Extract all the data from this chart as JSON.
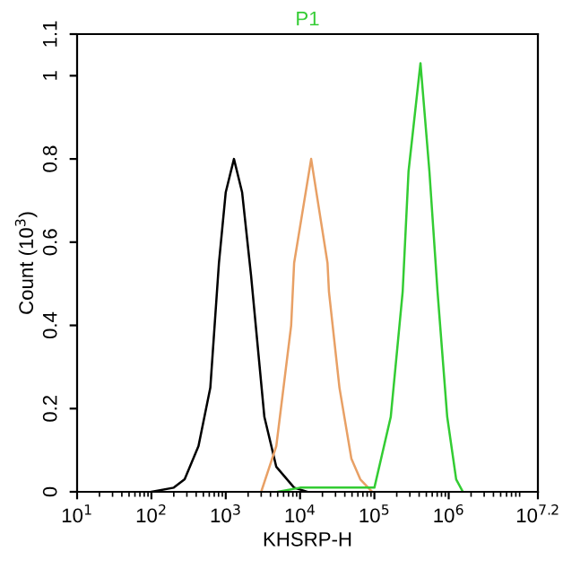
{
  "chart_data": {
    "type": "line",
    "xlabel": "KHSRP-H",
    "ylabel": "Count (10$^{3}$)",
    "log": "x",
    "legend": "top",
    "grid": false,
    "xlim": [
      10,
      15848932
    ],
    "ylim": [
      0,
      1.1
    ],
    "xticks": [
      {
        "value": 10,
        "label": "10$^{1}$"
      },
      {
        "value": 100,
        "label": "10$^{2}$"
      },
      {
        "value": 1000,
        "label": "10$^{3}$"
      },
      {
        "value": 10000,
        "label": "10$^{4}$"
      },
      {
        "value": 100000,
        "label": "10$^{5}$"
      },
      {
        "value": 1000000,
        "label": "10$^{6}$"
      },
      {
        "value": 15848932,
        "label": "10$^{7.2}$"
      }
    ],
    "yticks": [
      0,
      0.2,
      0.4,
      0.6,
      0.8,
      1,
      1.1
    ],
    "series": [
      {
        "color": "#000000",
        "x": [
          100,
          200,
          280,
          430,
          620,
          810,
          1000,
          1290,
          1660,
          2190,
          3310,
          4790,
          8320,
          12600
        ],
        "values": [
          0,
          0.01,
          0.03,
          0.11,
          0.25,
          0.55,
          0.72,
          0.8,
          0.72,
          0.52,
          0.18,
          0.06,
          0.01,
          0
        ]
      },
      {
        "color": "#e8a065",
        "x": [
          3000,
          4790,
          7590,
          8320,
          14100,
          23400,
          24500,
          33900,
          49000,
          64600,
          93300
        ],
        "values": [
          0,
          0.11,
          0.4,
          0.55,
          0.8,
          0.55,
          0.48,
          0.25,
          0.08,
          0.03,
          0
        ]
      },
      {
        "name": "P1",
        "color": "#33cc33",
        "x": [
          5010,
          10000,
          100000,
          166000,
          240000,
          288000,
          417000,
          550000,
          708000,
          955000,
          1260000,
          1550000
        ],
        "values": [
          0,
          0.01,
          0.01,
          0.18,
          0.48,
          0.77,
          1.03,
          0.77,
          0.48,
          0.18,
          0.03,
          0
        ]
      }
    ]
  }
}
